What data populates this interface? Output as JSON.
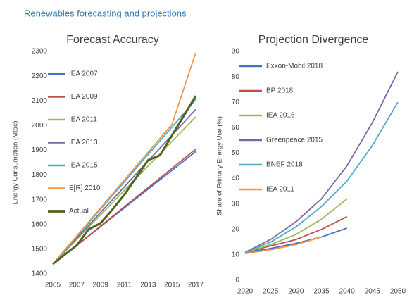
{
  "header": {
    "title": "Renewables forecasting and projections"
  },
  "chart_data": [
    {
      "type": "line",
      "title": "Forecast Accuracy",
      "y_label": "Energy Consumption (Mtoe)",
      "x": [
        2005,
        2006,
        2007,
        2008,
        2009,
        2010,
        2011,
        2012,
        2013,
        2014,
        2015,
        2016,
        2017
      ],
      "xlim": [
        2005,
        2017
      ],
      "xticks": [
        2005,
        2007,
        2009,
        2011,
        2013,
        2015,
        2017
      ],
      "ylim": [
        1400,
        2300
      ],
      "yticks": [
        1400,
        1500,
        1600,
        1700,
        1800,
        1900,
        2000,
        2100,
        2200,
        2300
      ],
      "grid": false,
      "legend": "left",
      "series": [
        {
          "name": "IEA 2007",
          "color": "#4472c4",
          "values": [
            1440,
            1478,
            1515,
            1553,
            1591,
            1629,
            1667,
            1705,
            1743,
            1781,
            1819,
            1857,
            1895
          ]
        },
        {
          "name": "IEA 2009",
          "color": "#c0504d",
          "values": [
            1440,
            1478,
            1515,
            1554,
            1593,
            1632,
            1671,
            1710,
            1749,
            1788,
            1827,
            1866,
            1905
          ]
        },
        {
          "name": "IEA 2011",
          "color": "#9bbb59",
          "values": [
            1440,
            1490,
            1539,
            1589,
            1638,
            1688,
            1738,
            1787,
            1837,
            1886,
            1936,
            1986,
            2035
          ]
        },
        {
          "name": "IEA 2013",
          "color": "#8064a2",
          "values": [
            1440,
            1492,
            1544,
            1596,
            1648,
            1700,
            1752,
            1805,
            1857,
            1909,
            1961,
            2013,
            2065
          ]
        },
        {
          "name": "IEA 2015",
          "color": "#4bacc6",
          "values": [
            1440,
            1495,
            1551,
            1606,
            1662,
            1717,
            1772,
            1828,
            1883,
            1939,
            1994,
            2049,
            2105
          ]
        },
        {
          "name": "E[R] 2010",
          "color": "#f79646",
          "values": [
            1440,
            1497,
            1553,
            1610,
            1666,
            1723,
            1779,
            1836,
            1892,
            1949,
            2005,
            2150,
            2295
          ]
        },
        {
          "name": "Actual",
          "color": "#4f6228",
          "values": [
            1440,
            1478,
            1515,
            1580,
            1605,
            1660,
            1720,
            1790,
            1860,
            1880,
            1960,
            2040,
            2120
          ]
        }
      ]
    },
    {
      "type": "line",
      "title": "Projection Divergence",
      "y_label": "Share of Primary Energy Use (%)",
      "x": [
        2020,
        2025,
        2030,
        2035,
        2040,
        2045,
        2050
      ],
      "xlim": [
        2020,
        2050
      ],
      "xticks": [
        2020,
        2025,
        2030,
        2035,
        2040,
        2045,
        2050
      ],
      "ylim": [
        0,
        90
      ],
      "yticks": [
        0,
        10,
        20,
        30,
        40,
        50,
        60,
        70,
        80,
        90
      ],
      "grid": false,
      "legend": "upper left",
      "series": [
        {
          "name": "Exxon-Mobil 2018",
          "color": "#4472c4",
          "values": [
            11,
            12.5,
            14.5,
            17,
            20.5,
            null,
            null
          ]
        },
        {
          "name": "BP 2018",
          "color": "#c0504d",
          "values": [
            11,
            13.5,
            16,
            20,
            25,
            null,
            null
          ]
        },
        {
          "name": "IEA 2016",
          "color": "#9bbb59",
          "values": [
            11,
            14,
            18,
            24,
            32,
            null,
            null
          ]
        },
        {
          "name": "Greenpeace 2015",
          "color": "#8064a2",
          "values": [
            11,
            16,
            23,
            32,
            45,
            62,
            82
          ]
        },
        {
          "name": "BNEF 2018",
          "color": "#4bacc6",
          "values": [
            11,
            15,
            21,
            29,
            39,
            53,
            70
          ]
        },
        {
          "name": "IEA 2011",
          "color": "#f79646",
          "values": [
            10.5,
            12,
            14,
            17,
            null,
            null,
            null
          ]
        }
      ]
    }
  ]
}
